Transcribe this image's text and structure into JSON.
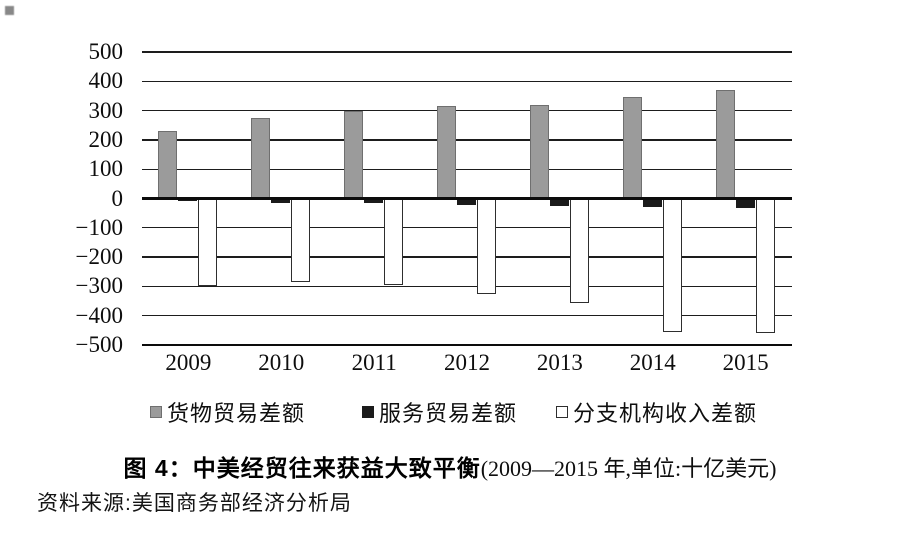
{
  "page": {
    "background": "#ffffff"
  },
  "chart_data": {
    "type": "bar",
    "title": "图 4：中美经贸往来获益大致平衡",
    "subtitle": "(2009—2015 年,单位:十亿美元)",
    "source": "资料来源:美国商务部经济分析局",
    "categories": [
      "2009",
      "2010",
      "2011",
      "2012",
      "2013",
      "2014",
      "2015"
    ],
    "series": [
      {
        "key": "goods",
        "name": "货物贸易差额",
        "color": "#9b9b9b",
        "border": "#6f6f6f",
        "border_width": 1,
        "values": [
          230,
          275,
          300,
          315,
          320,
          345,
          370
        ]
      },
      {
        "key": "services",
        "name": "服务贸易差额",
        "color": "#1b1b1b",
        "border": "#1b1b1b",
        "border_width": 0,
        "values": [
          -7,
          -14,
          -17,
          -22,
          -26,
          -30,
          -33
        ]
      },
      {
        "key": "branch",
        "name": "分支机构收入差额",
        "color": "#ffffff",
        "border": "#2e2e2e",
        "border_width": 1.5,
        "values": [
          -300,
          -285,
          -295,
          -325,
          -355,
          -455,
          -460
        ]
      }
    ],
    "ylim": [
      -500,
      500
    ],
    "ytick_step": 100,
    "yticks": [
      "500",
      "400",
      "300",
      "200",
      "100",
      "0",
      "−100",
      "−200",
      "−300",
      "−400",
      "−500"
    ],
    "grid": true,
    "legend_position": "bottom"
  },
  "caption": {
    "figure_title": "图 4：中美经贸往来获益大致平衡",
    "subtitle": "(2009—2015 年,单位:十亿美元)"
  },
  "source_line": "资料来源:美国商务部经济分析局"
}
